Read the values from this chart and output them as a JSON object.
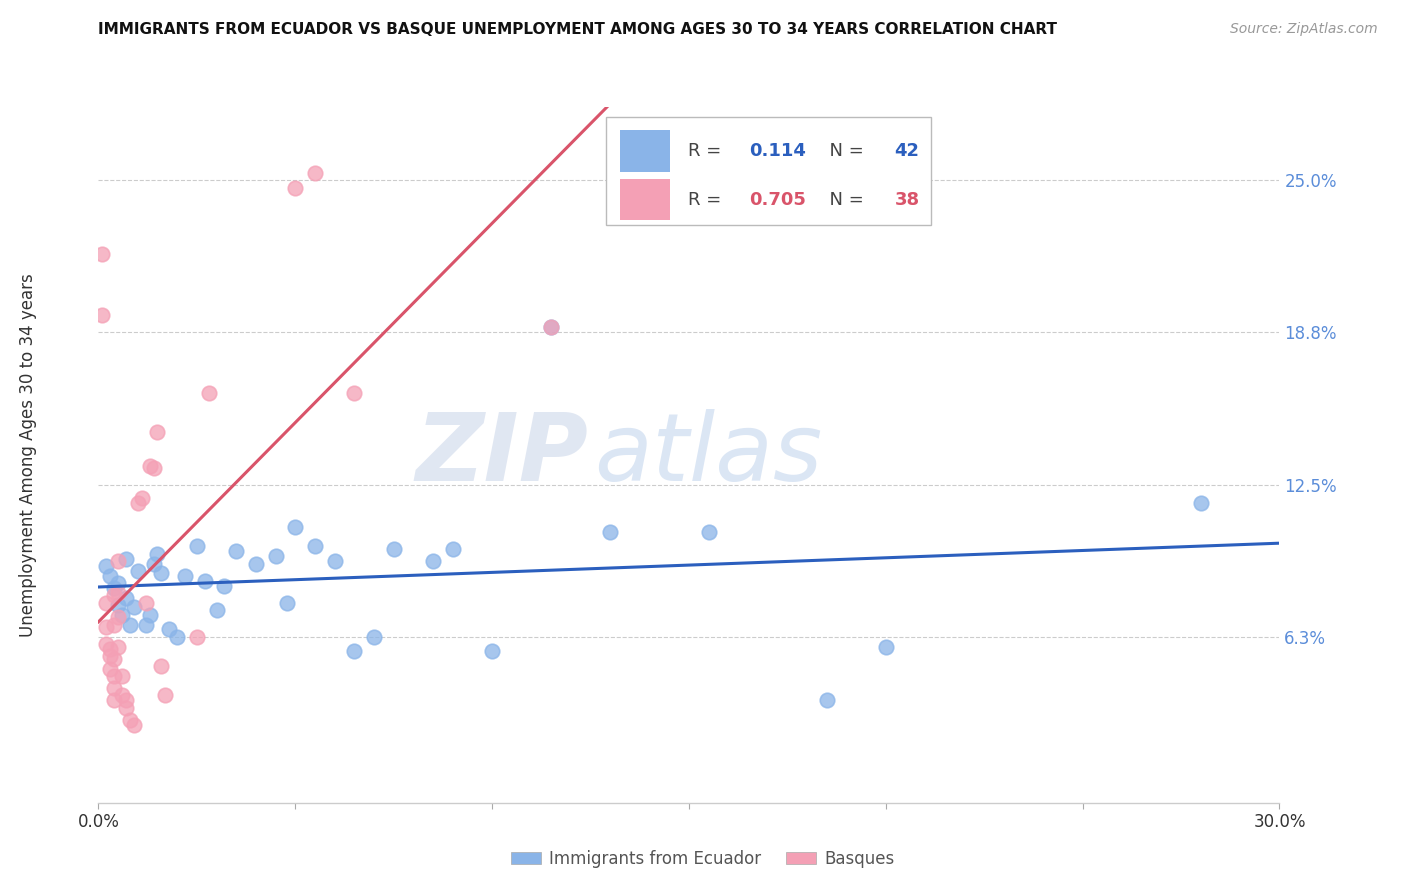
{
  "title": "IMMIGRANTS FROM ECUADOR VS BASQUE UNEMPLOYMENT AMONG AGES 30 TO 34 YEARS CORRELATION CHART",
  "source": "Source: ZipAtlas.com",
  "ylabel": "Unemployment Among Ages 30 to 34 years",
  "xmin": 0.0,
  "xmax": 0.3,
  "ymin": -0.005,
  "ymax": 0.28,
  "yticks": [
    0.063,
    0.125,
    0.188,
    0.25
  ],
  "ytick_labels": [
    "6.3%",
    "12.5%",
    "18.8%",
    "25.0%"
  ],
  "xticks": [
    0.0,
    0.05,
    0.1,
    0.15,
    0.2,
    0.25,
    0.3
  ],
  "xtick_labels_show": [
    "0.0%",
    "30.0%"
  ],
  "legend_blue_r": "0.114",
  "legend_blue_n": "42",
  "legend_pink_r": "0.705",
  "legend_pink_n": "38",
  "blue_color": "#8ab4e8",
  "pink_color": "#f4a0b5",
  "blue_line_color": "#2b5fbe",
  "pink_line_color": "#d9546a",
  "watermark_zip": "ZIP",
  "watermark_atlas": "atlas",
  "blue_points": [
    [
      0.002,
      0.092
    ],
    [
      0.003,
      0.088
    ],
    [
      0.004,
      0.083
    ],
    [
      0.005,
      0.085
    ],
    [
      0.005,
      0.076
    ],
    [
      0.006,
      0.072
    ],
    [
      0.007,
      0.095
    ],
    [
      0.007,
      0.079
    ],
    [
      0.008,
      0.068
    ],
    [
      0.009,
      0.075
    ],
    [
      0.01,
      0.09
    ],
    [
      0.012,
      0.068
    ],
    [
      0.013,
      0.072
    ],
    [
      0.014,
      0.093
    ],
    [
      0.015,
      0.097
    ],
    [
      0.016,
      0.089
    ],
    [
      0.018,
      0.066
    ],
    [
      0.02,
      0.063
    ],
    [
      0.022,
      0.088
    ],
    [
      0.025,
      0.1
    ],
    [
      0.027,
      0.086
    ],
    [
      0.03,
      0.074
    ],
    [
      0.032,
      0.084
    ],
    [
      0.035,
      0.098
    ],
    [
      0.04,
      0.093
    ],
    [
      0.045,
      0.096
    ],
    [
      0.048,
      0.077
    ],
    [
      0.05,
      0.108
    ],
    [
      0.055,
      0.1
    ],
    [
      0.06,
      0.094
    ],
    [
      0.065,
      0.057
    ],
    [
      0.07,
      0.063
    ],
    [
      0.075,
      0.099
    ],
    [
      0.085,
      0.094
    ],
    [
      0.09,
      0.099
    ],
    [
      0.1,
      0.057
    ],
    [
      0.115,
      0.19
    ],
    [
      0.13,
      0.106
    ],
    [
      0.155,
      0.106
    ],
    [
      0.185,
      0.037
    ],
    [
      0.2,
      0.059
    ],
    [
      0.28,
      0.118
    ]
  ],
  "pink_points": [
    [
      0.001,
      0.22
    ],
    [
      0.001,
      0.195
    ],
    [
      0.002,
      0.077
    ],
    [
      0.002,
      0.067
    ],
    [
      0.002,
      0.06
    ],
    [
      0.003,
      0.058
    ],
    [
      0.003,
      0.055
    ],
    [
      0.003,
      0.05
    ],
    [
      0.004,
      0.08
    ],
    [
      0.004,
      0.068
    ],
    [
      0.004,
      0.054
    ],
    [
      0.004,
      0.047
    ],
    [
      0.004,
      0.042
    ],
    [
      0.004,
      0.037
    ],
    [
      0.005,
      0.094
    ],
    [
      0.005,
      0.081
    ],
    [
      0.005,
      0.071
    ],
    [
      0.005,
      0.059
    ],
    [
      0.006,
      0.047
    ],
    [
      0.006,
      0.039
    ],
    [
      0.007,
      0.037
    ],
    [
      0.007,
      0.034
    ],
    [
      0.008,
      0.029
    ],
    [
      0.009,
      0.027
    ],
    [
      0.01,
      0.118
    ],
    [
      0.011,
      0.12
    ],
    [
      0.012,
      0.077
    ],
    [
      0.013,
      0.133
    ],
    [
      0.014,
      0.132
    ],
    [
      0.015,
      0.147
    ],
    [
      0.016,
      0.051
    ],
    [
      0.017,
      0.039
    ],
    [
      0.025,
      0.063
    ],
    [
      0.028,
      0.163
    ],
    [
      0.05,
      0.247
    ],
    [
      0.055,
      0.253
    ],
    [
      0.065,
      0.163
    ],
    [
      0.115,
      0.19
    ]
  ]
}
